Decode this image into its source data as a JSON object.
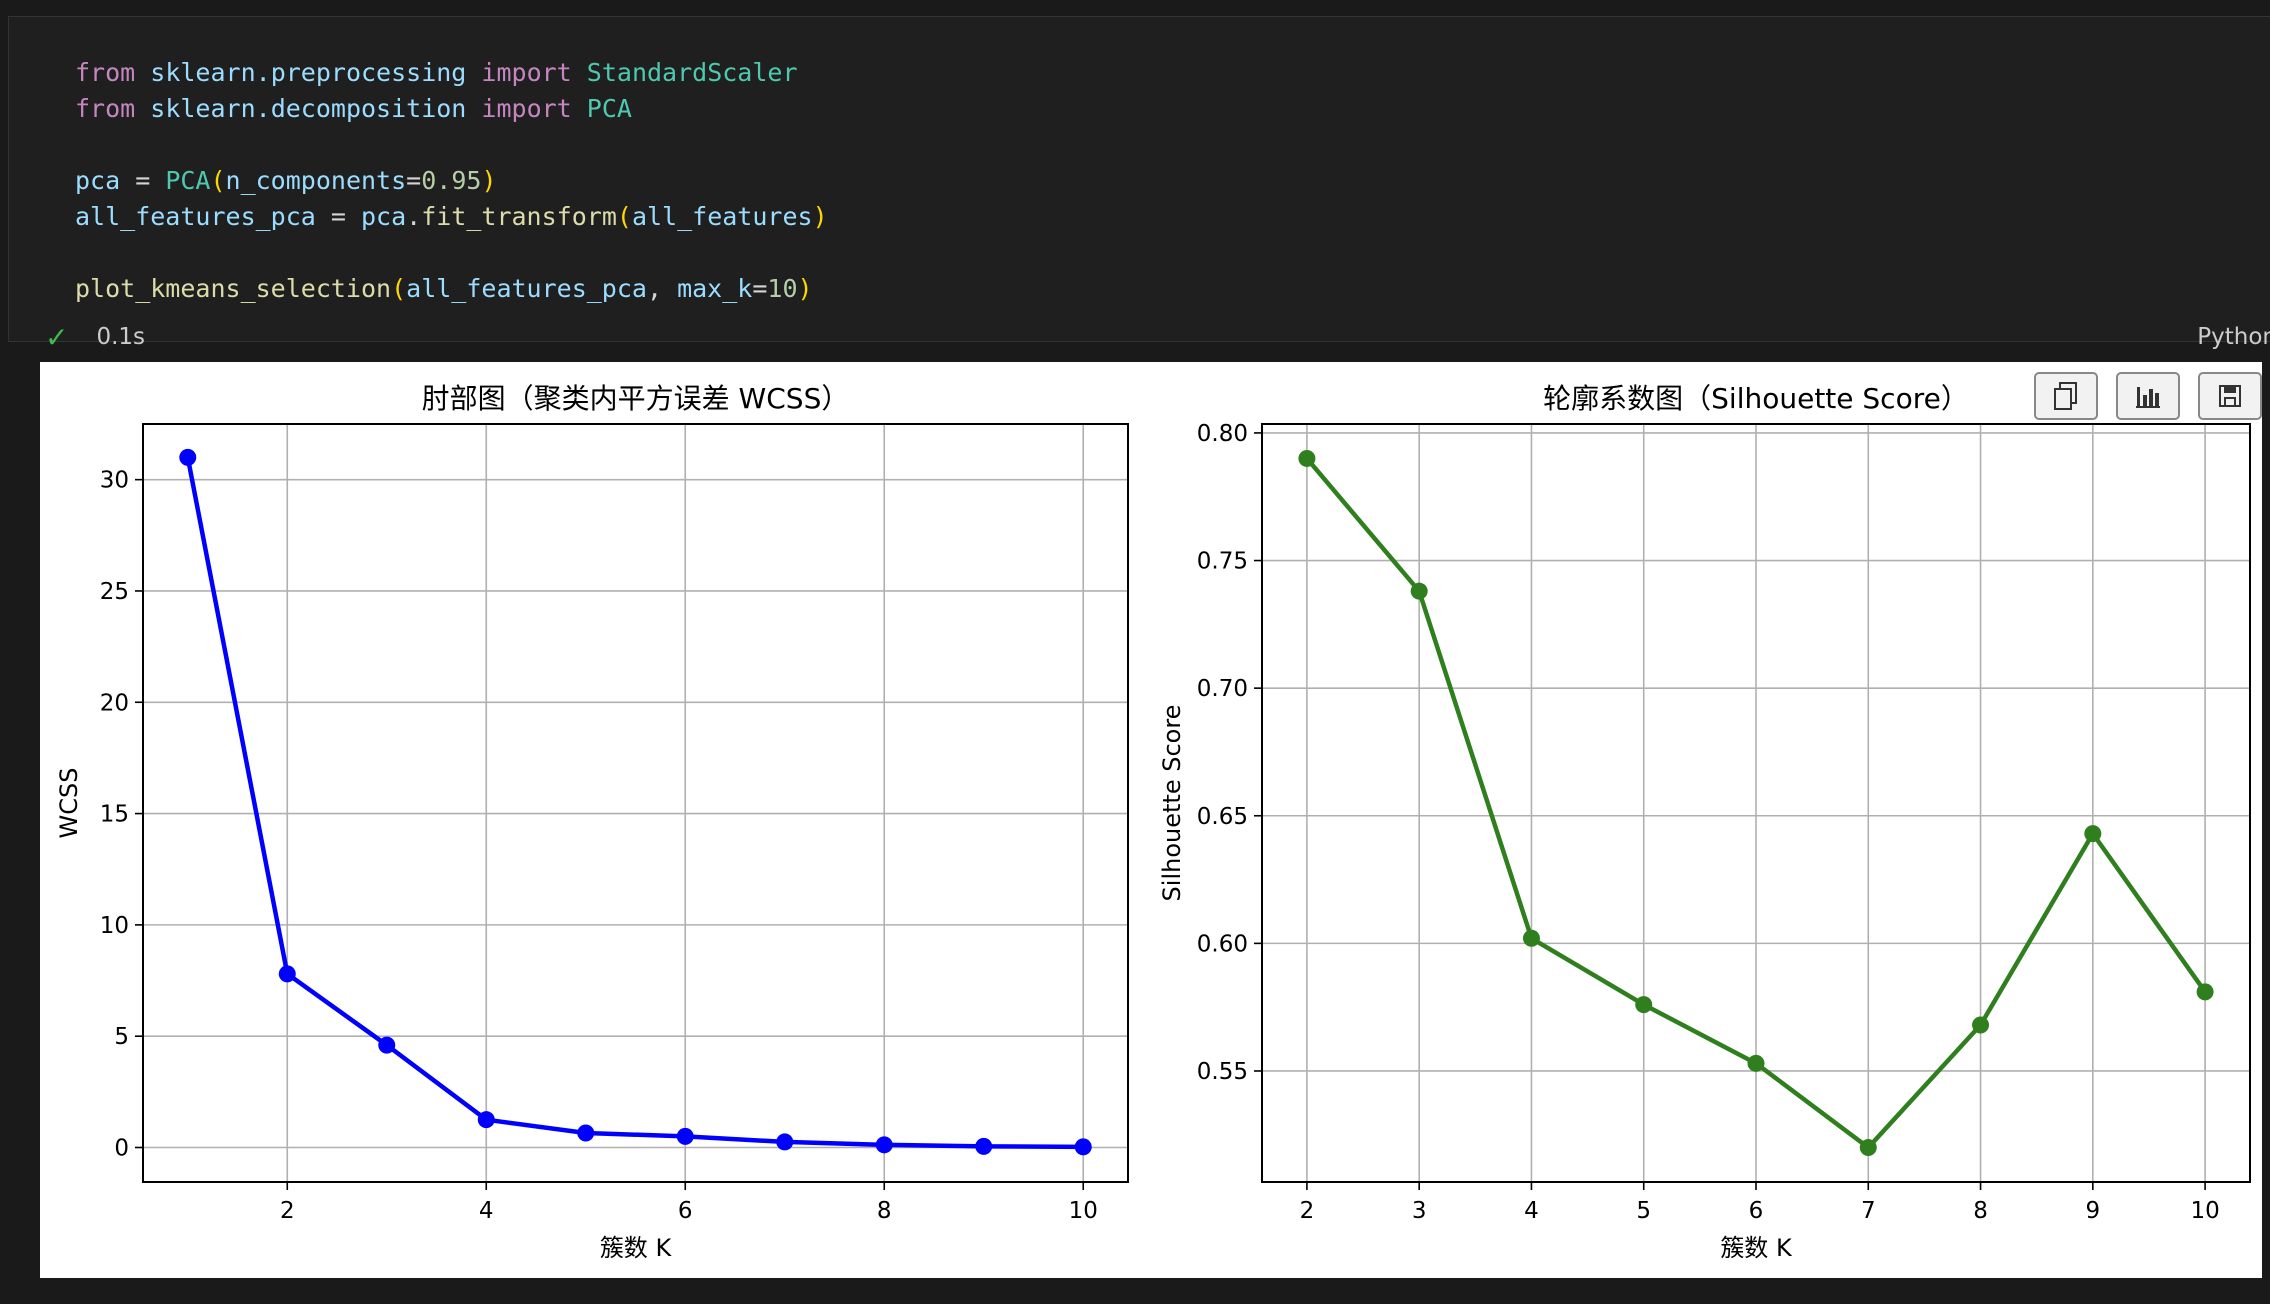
{
  "cell": {
    "code_lines": [
      [
        {
          "t": "from",
          "c": "kw"
        },
        {
          "t": " "
        },
        {
          "t": "sklearn.preprocessing",
          "c": "mod"
        },
        {
          "t": " "
        },
        {
          "t": "import",
          "c": "kw"
        },
        {
          "t": " "
        },
        {
          "t": "StandardScaler",
          "c": "cls"
        }
      ],
      [
        {
          "t": "from",
          "c": "kw"
        },
        {
          "t": " "
        },
        {
          "t": "sklearn.decomposition",
          "c": "mod"
        },
        {
          "t": " "
        },
        {
          "t": "import",
          "c": "kw"
        },
        {
          "t": " "
        },
        {
          "t": "PCA",
          "c": "cls"
        }
      ],
      [],
      [
        {
          "t": "pca",
          "c": "var"
        },
        {
          "t": " = "
        },
        {
          "t": "PCA",
          "c": "cls"
        },
        {
          "t": "(",
          "c": "br"
        },
        {
          "t": "n_components",
          "c": "var"
        },
        {
          "t": "="
        },
        {
          "t": "0.95",
          "c": "num"
        },
        {
          "t": ")",
          "c": "br"
        }
      ],
      [
        {
          "t": "all_features_pca",
          "c": "var"
        },
        {
          "t": " = "
        },
        {
          "t": "pca",
          "c": "var"
        },
        {
          "t": "."
        },
        {
          "t": "fit_transform",
          "c": "fn"
        },
        {
          "t": "(",
          "c": "br"
        },
        {
          "t": "all_features",
          "c": "var"
        },
        {
          "t": ")",
          "c": "br"
        }
      ],
      [],
      [
        {
          "t": "plot_kmeans_selection",
          "c": "fn"
        },
        {
          "t": "(",
          "c": "br"
        },
        {
          "t": "all_features_pca",
          "c": "var"
        },
        {
          "t": ", "
        },
        {
          "t": "max_k",
          "c": "var"
        },
        {
          "t": "="
        },
        {
          "t": "10",
          "c": "num"
        },
        {
          "t": ")",
          "c": "br"
        }
      ]
    ],
    "status_icon": "check-icon",
    "exec_time": "0.1s",
    "language": "Python"
  },
  "toolbar": {
    "buttons": [
      {
        "name": "copy-output-button",
        "icon": "copy-icon"
      },
      {
        "name": "chart-view-button",
        "icon": "bar-chart-icon"
      },
      {
        "name": "save-output-button",
        "icon": "save-icon"
      }
    ]
  },
  "chart_data": [
    {
      "type": "line",
      "title": "肘部图（聚类内平方误差 WCSS）",
      "xlabel": "簇数 K",
      "ylabel": "WCSS",
      "x": [
        1,
        2,
        3,
        4,
        5,
        6,
        7,
        8,
        9,
        10
      ],
      "values": [
        31.0,
        7.8,
        4.6,
        1.25,
        0.65,
        0.5,
        0.25,
        0.12,
        0.05,
        0.03
      ],
      "xticks": [
        2,
        4,
        6,
        8,
        10
      ],
      "yticks": [
        0,
        5,
        10,
        15,
        20,
        25,
        30
      ],
      "xlim": [
        0.55,
        10.45
      ],
      "ylim": [
        -1.55,
        32.5
      ],
      "color": "#0000ff",
      "grid": true
    },
    {
      "type": "line",
      "title": "轮廓系数图（Silhouette Score）",
      "xlabel": "簇数 K",
      "ylabel": "Silhouette Score",
      "x": [
        2,
        3,
        4,
        5,
        6,
        7,
        8,
        9,
        10
      ],
      "values": [
        0.79,
        0.738,
        0.602,
        0.576,
        0.553,
        0.52,
        0.568,
        0.643,
        0.581
      ],
      "xticks": [
        2,
        3,
        4,
        5,
        6,
        7,
        8,
        9,
        10
      ],
      "yticks": [
        0.55,
        0.6,
        0.65,
        0.7,
        0.75,
        0.8
      ],
      "ytick_labels": [
        "0.55",
        "0.60",
        "0.65",
        "0.70",
        "0.75",
        "0.80"
      ],
      "xlim": [
        1.6,
        10.4
      ],
      "ylim": [
        0.5065,
        0.8035
      ],
      "color": "#2f7f1e",
      "grid": true
    }
  ]
}
